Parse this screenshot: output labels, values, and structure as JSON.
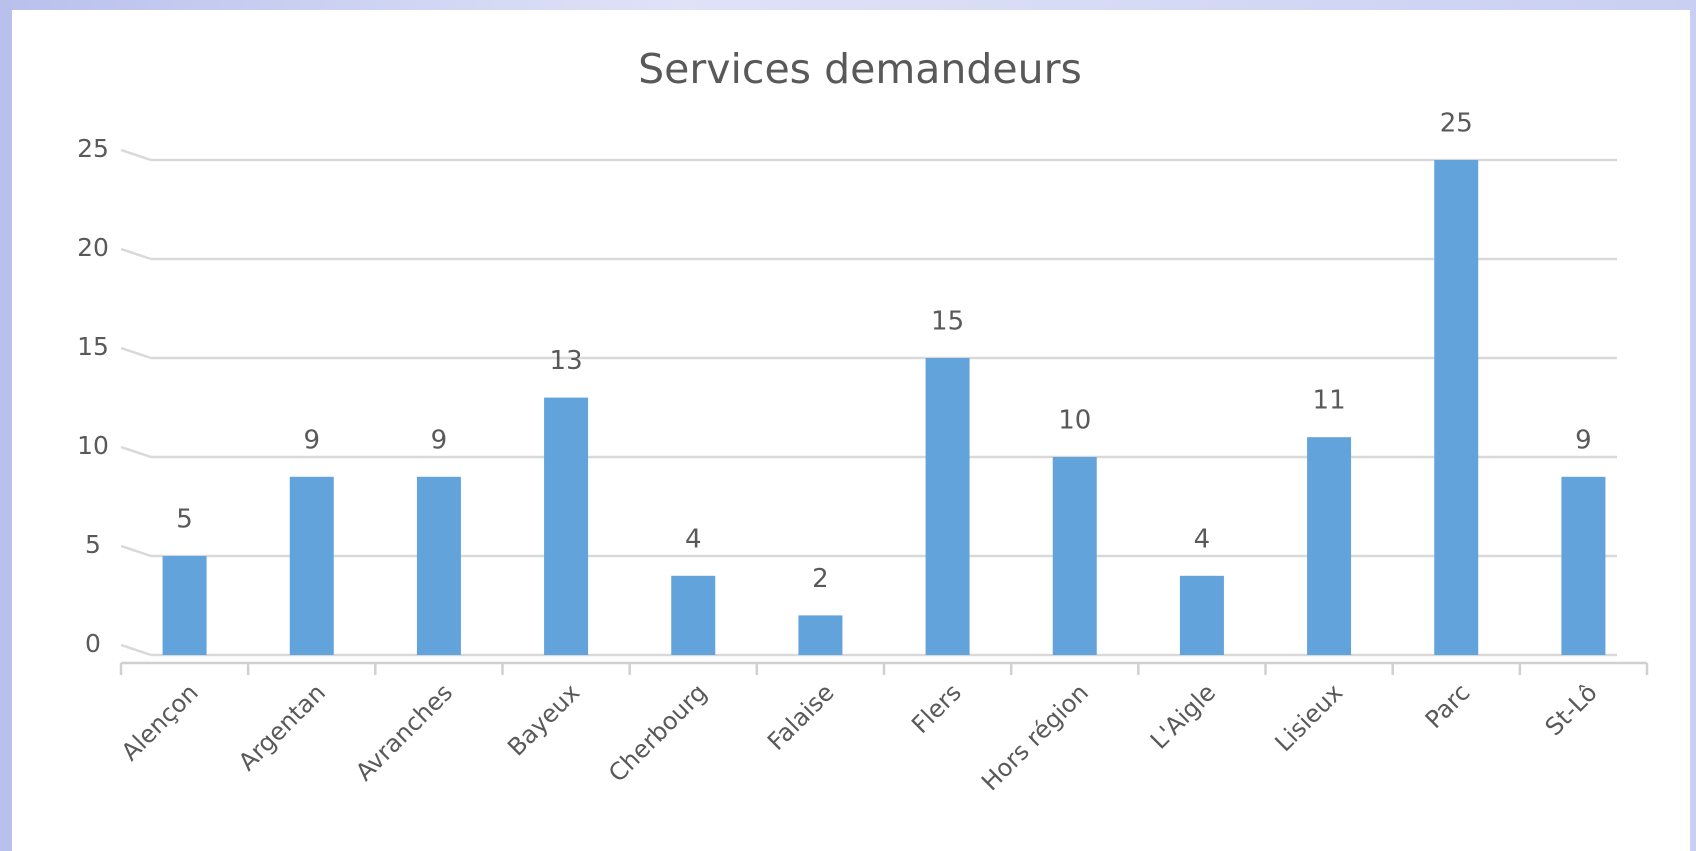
{
  "chart_data": {
    "type": "bar",
    "title": "Services demandeurs",
    "categories": [
      "Alençon",
      "Argentan",
      "Avranches",
      "Bayeux",
      "Cherbourg",
      "Falaise",
      "Flers",
      "Hors région",
      "L'Aigle",
      "Lisieux",
      "Parc",
      "St-Lô"
    ],
    "values": [
      5,
      9,
      9,
      13,
      4,
      2,
      15,
      10,
      4,
      11,
      25,
      9
    ],
    "color": "#62a3dc",
    "ylim": [
      0,
      25
    ],
    "yticks": [
      0,
      5,
      10,
      15,
      20,
      25
    ],
    "grid": true
  }
}
